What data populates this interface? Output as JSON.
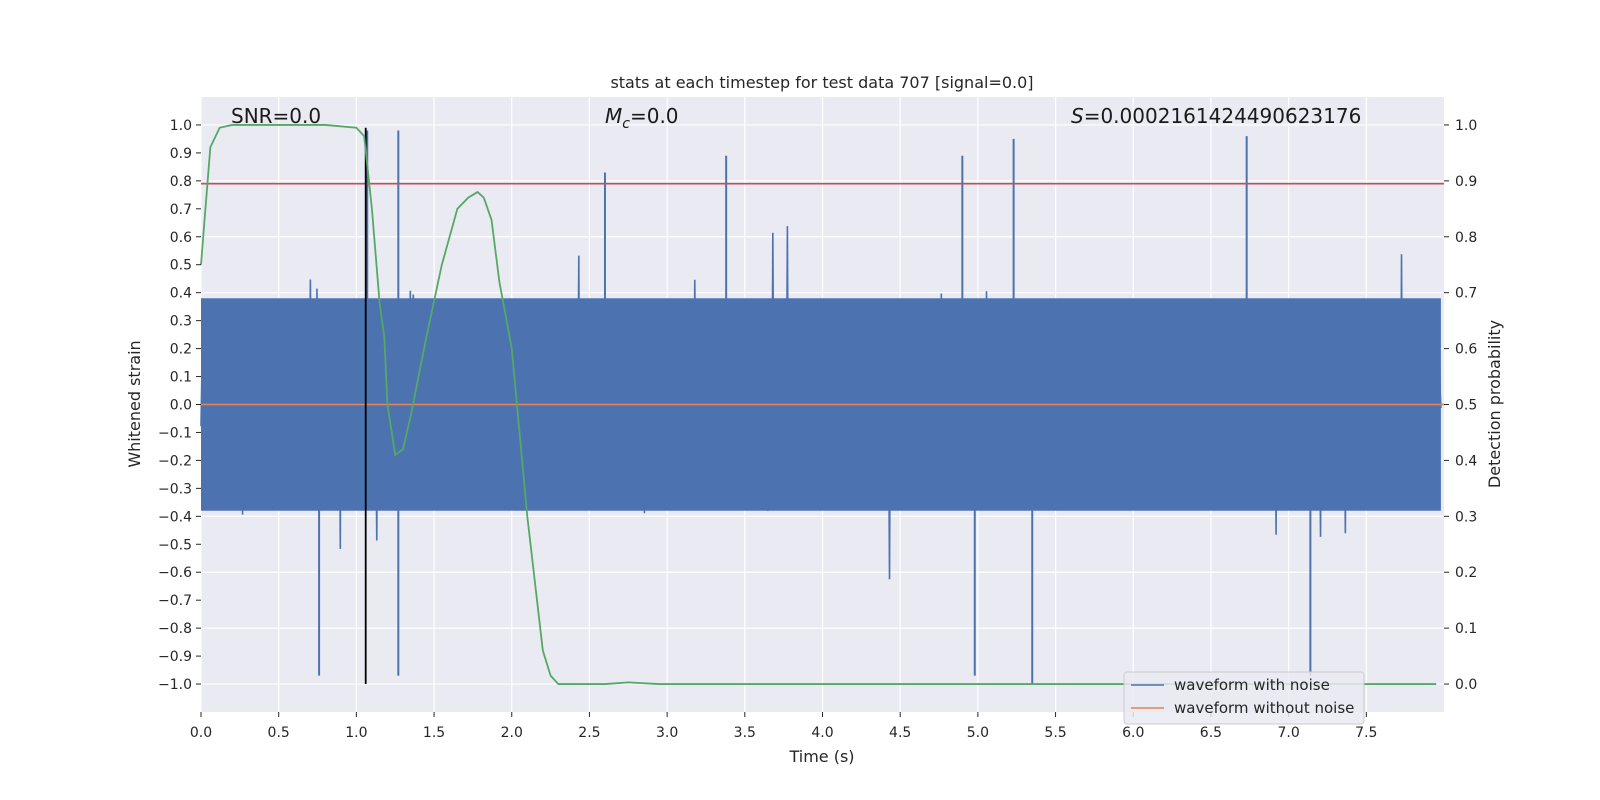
{
  "chart_data": {
    "type": "line",
    "title": "stats at each timestep for test data 707 [signal=0.0]",
    "xlabel": "Time (s)",
    "ylabel": "Whitened strain",
    "y2label": "Detection probability",
    "xlim": [
      0.0,
      8.0
    ],
    "ylim": [
      -1.1,
      1.1
    ],
    "y2lim": [
      -0.05,
      1.05
    ],
    "xticks": [
      "0.0",
      "0.5",
      "1.0",
      "1.5",
      "2.0",
      "2.5",
      "3.0",
      "3.5",
      "4.0",
      "4.5",
      "5.0",
      "5.5",
      "6.0",
      "6.5",
      "7.0",
      "7.5"
    ],
    "yticks": [
      "1.0",
      "0.9",
      "0.8",
      "0.7",
      "0.6",
      "0.5",
      "0.4",
      "0.3",
      "0.2",
      "0.1",
      "0.0",
      "−0.1",
      "−0.2",
      "−0.3",
      "−0.4",
      "−0.5",
      "−0.6",
      "−0.7",
      "−0.8",
      "−0.9",
      "−1.0"
    ],
    "y2ticks": [
      "1.0",
      "0.9",
      "0.8",
      "0.7",
      "0.6",
      "0.5",
      "0.4",
      "0.3",
      "0.2",
      "0.1",
      "0.0"
    ],
    "grid": true,
    "legend_position": "lower-right",
    "annotations": {
      "snr": "SNR=0.0",
      "mc_symbol": "M",
      "mc_sub": "c",
      "mc_value": "=0.0",
      "s_symbol": "S",
      "s_value": "=0.0002161424490623176"
    },
    "series": [
      {
        "name": "waveform with noise",
        "color": "#4c72b0",
        "description": "dense noise, typical amplitude ~±0.4 with spikes to ~±1.0",
        "notable_peaks": [
          {
            "x": 1.07,
            "y": 0.98
          },
          {
            "x": 1.27,
            "y": 0.98
          },
          {
            "x": 2.6,
            "y": 0.83
          },
          {
            "x": 3.38,
            "y": 0.89
          },
          {
            "x": 4.9,
            "y": 0.89
          },
          {
            "x": 5.23,
            "y": 0.95
          },
          {
            "x": 6.73,
            "y": 0.96
          },
          {
            "x": 0.76,
            "y": -0.97
          },
          {
            "x": 1.27,
            "y": -0.97
          },
          {
            "x": 4.98,
            "y": -0.97
          },
          {
            "x": 5.35,
            "y": -1.0
          },
          {
            "x": 7.14,
            "y": -0.97
          }
        ]
      },
      {
        "name": "waveform without noise",
        "color": "#dd8452",
        "x": [
          0.0,
          8.0
        ],
        "y": [
          0.0,
          0.0
        ]
      },
      {
        "name": "detection probability",
        "axis": "right",
        "color": "#55a868",
        "x": [
          0.0,
          0.06,
          0.12,
          0.2,
          0.5,
          0.8,
          1.0,
          1.05,
          1.1,
          1.15,
          1.18,
          1.2,
          1.25,
          1.3,
          1.35,
          1.45,
          1.55,
          1.65,
          1.72,
          1.78,
          1.82,
          1.87,
          1.92,
          2.0,
          2.1,
          2.2,
          2.25,
          2.3,
          2.4,
          2.6,
          2.75,
          2.95,
          3.5,
          7.95
        ],
        "y": [
          0.75,
          0.96,
          0.995,
          1.0,
          1.0,
          1.0,
          0.995,
          0.98,
          0.85,
          0.68,
          0.62,
          0.5,
          0.41,
          0.42,
          0.48,
          0.62,
          0.75,
          0.85,
          0.87,
          0.88,
          0.87,
          0.83,
          0.72,
          0.6,
          0.3,
          0.06,
          0.015,
          0.0,
          0.0,
          0.0,
          0.003,
          0.0,
          0.0,
          0.0
        ]
      }
    ],
    "reference_lines": {
      "threshold_y": 0.79,
      "threshold_color": "#c44e52",
      "vertical_x": 1.06,
      "vertical_y_range": [
        -1.0,
        0.99
      ],
      "vertical_color": "#000000"
    }
  }
}
